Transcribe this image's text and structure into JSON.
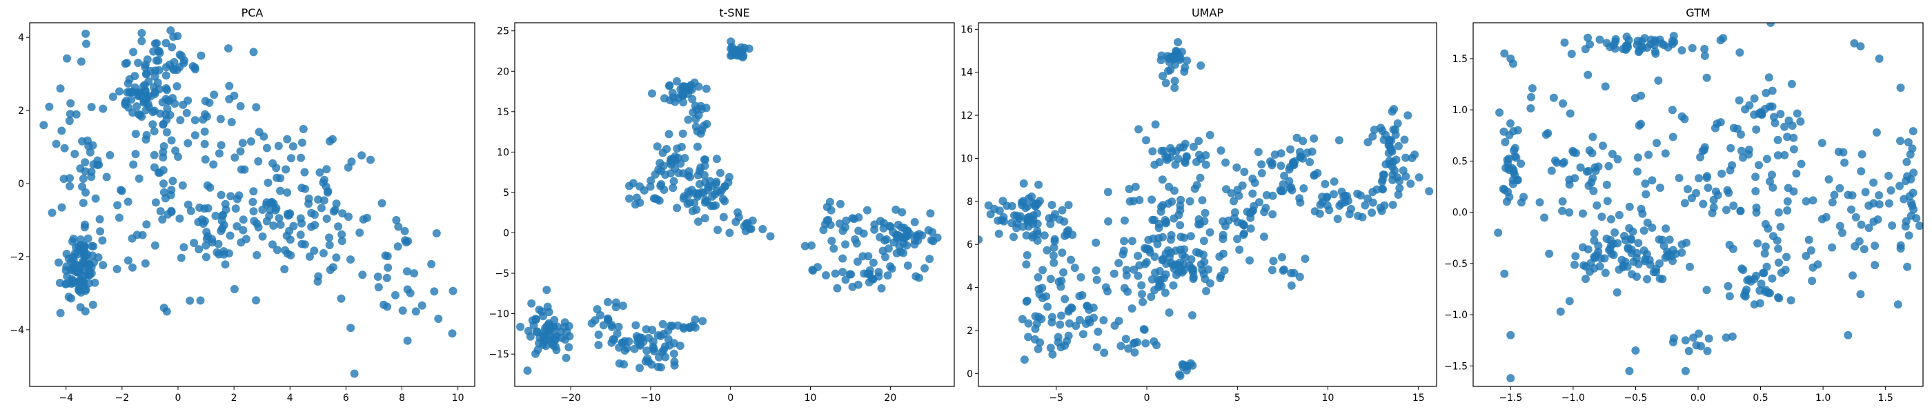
{
  "figure": {
    "background": "#ffffff",
    "point_color": "#1f77b4",
    "point_alpha": 0.8
  },
  "chart_data": [
    {
      "type": "scatter",
      "title": "PCA",
      "xlabel": "",
      "ylabel": "",
      "xlim": [
        -5.3,
        10.6
      ],
      "ylim": [
        -5.55,
        4.4
      ],
      "xticks": [
        -4,
        -2,
        0,
        2,
        4,
        6,
        8,
        10
      ],
      "yticks": [
        -4,
        -2,
        0,
        2,
        4
      ],
      "grid": false,
      "clusters": [
        {
          "cx": -3.5,
          "cy": -2.3,
          "sx": 0.35,
          "sy": 0.45,
          "n": 90
        },
        {
          "cx": -1.0,
          "cy": 2.2,
          "sx": 0.55,
          "sy": 0.7,
          "n": 90
        },
        {
          "cx": -0.5,
          "cy": 3.3,
          "sx": 0.6,
          "sy": 0.35,
          "n": 30
        },
        {
          "cx": -3.5,
          "cy": 0.5,
          "sx": 0.6,
          "sy": 1.3,
          "n": 40
        },
        {
          "cx": 1.2,
          "cy": 1.0,
          "sx": 1.0,
          "sy": 1.0,
          "n": 45
        },
        {
          "cx": 1.5,
          "cy": -1.2,
          "sx": 0.9,
          "sy": 0.5,
          "n": 35
        },
        {
          "cx": 3.5,
          "cy": -0.6,
          "sx": 0.8,
          "sy": 1.0,
          "n": 70
        },
        {
          "cx": 5.5,
          "cy": -0.8,
          "sx": 0.7,
          "sy": 0.9,
          "n": 45
        },
        {
          "cx": 7.8,
          "cy": -2.5,
          "sx": 1.0,
          "sy": 0.9,
          "n": 25
        },
        {
          "cx": -1.2,
          "cy": -1.0,
          "sx": 1.0,
          "sy": 1.0,
          "n": 35
        }
      ],
      "points": [
        {
          "x": -4.8,
          "y": 1.6
        },
        {
          "x": -4.6,
          "y": 2.1
        },
        {
          "x": -4.2,
          "y": 2.6
        },
        {
          "x": -4.5,
          "y": -0.8
        },
        {
          "x": -3.3,
          "y": 4.1
        },
        {
          "x": 2.7,
          "y": 3.6
        },
        {
          "x": 1.8,
          "y": 3.7
        },
        {
          "x": 7.8,
          "y": -1.0
        },
        {
          "x": 8.1,
          "y": -1.3
        },
        {
          "x": 7.5,
          "y": -2.3
        },
        {
          "x": 8.3,
          "y": -3.0
        },
        {
          "x": 8.5,
          "y": -3.5
        },
        {
          "x": 8.2,
          "y": -4.3
        },
        {
          "x": 9.3,
          "y": -3.7
        },
        {
          "x": 9.8,
          "y": -4.1
        },
        {
          "x": 6.3,
          "y": -5.2
        },
        {
          "x": 0.8,
          "y": -3.2
        },
        {
          "x": -0.4,
          "y": -3.5
        },
        {
          "x": -0.5,
          "y": -3.4
        },
        {
          "x": 6.2,
          "y": 0.6
        },
        {
          "x": -1.3,
          "y": 3.9
        },
        {
          "x": -1.6,
          "y": 3.6
        }
      ]
    },
    {
      "type": "scatter",
      "title": "t-SNE",
      "xlabel": "",
      "ylabel": "",
      "xlim": [
        -27,
        28
      ],
      "ylim": [
        -19,
        26
      ],
      "xticks": [
        -20,
        -10,
        0,
        10,
        20
      ],
      "yticks": [
        -15,
        -10,
        -5,
        0,
        5,
        10,
        15,
        20,
        25
      ],
      "grid": false,
      "clusters": [
        {
          "cx": 1.0,
          "cy": 22.5,
          "sx": 0.8,
          "sy": 0.6,
          "n": 20
        },
        {
          "cx": -6.0,
          "cy": 17.5,
          "sx": 1.6,
          "sy": 1.0,
          "n": 30
        },
        {
          "cx": -4.0,
          "cy": 14.0,
          "sx": 0.6,
          "sy": 1.2,
          "n": 15
        },
        {
          "cx": -7.0,
          "cy": 8.0,
          "sx": 1.6,
          "sy": 1.6,
          "n": 35
        },
        {
          "cx": -3.0,
          "cy": 5.0,
          "sx": 1.5,
          "sy": 2.0,
          "n": 55
        },
        {
          "cx": -10.0,
          "cy": 5.0,
          "sx": 1.5,
          "sy": 0.9,
          "n": 15
        },
        {
          "cx": 3.0,
          "cy": 1.0,
          "sx": 2.0,
          "sy": 0.9,
          "n": 15
        },
        {
          "cx": 15.0,
          "cy": 0.5,
          "sx": 2.5,
          "sy": 1.8,
          "n": 35
        },
        {
          "cx": 22.0,
          "cy": -0.3,
          "sx": 1.8,
          "sy": 1.4,
          "n": 45
        },
        {
          "cx": 17.0,
          "cy": -5.0,
          "sx": 3.0,
          "sy": 1.0,
          "n": 35
        },
        {
          "cx": -23.0,
          "cy": -12.5,
          "sx": 1.5,
          "sy": 1.7,
          "n": 60
        },
        {
          "cx": -10.0,
          "cy": -14.5,
          "sx": 2.0,
          "sy": 1.5,
          "n": 50
        },
        {
          "cx": -15.0,
          "cy": -11.5,
          "sx": 1.6,
          "sy": 1.6,
          "n": 25
        },
        {
          "cx": -5.0,
          "cy": -11.5,
          "sx": 1.0,
          "sy": 0.5,
          "n": 10
        }
      ],
      "points": []
    },
    {
      "type": "scatter",
      "title": "UMAP",
      "xlabel": "",
      "ylabel": "",
      "xlim": [
        -9.3,
        16.0
      ],
      "ylim": [
        -0.6,
        16.3
      ],
      "xticks": [
        -5,
        0,
        5,
        10,
        15
      ],
      "yticks": [
        0,
        2,
        4,
        6,
        8,
        10,
        12,
        14,
        16
      ],
      "grid": false,
      "clusters": [
        {
          "cx": -7.0,
          "cy": 7.2,
          "sx": 0.9,
          "sy": 0.6,
          "n": 60
        },
        {
          "cx": -5.0,
          "cy": 6.0,
          "sx": 0.9,
          "sy": 0.9,
          "n": 25
        },
        {
          "cx": -5.0,
          "cy": 2.5,
          "sx": 1.0,
          "sy": 1.1,
          "n": 55
        },
        {
          "cx": -2.5,
          "cy": 2.5,
          "sx": 1.0,
          "sy": 0.5,
          "n": 10
        },
        {
          "cx": -0.5,
          "cy": 1.3,
          "sx": 0.5,
          "sy": 0.4,
          "n": 12
        },
        {
          "cx": 2.0,
          "cy": 0.3,
          "sx": 0.3,
          "sy": 0.3,
          "n": 10
        },
        {
          "cx": 1.5,
          "cy": 14.5,
          "sx": 0.5,
          "sy": 0.6,
          "n": 30
        },
        {
          "cx": 0.0,
          "cy": 5.0,
          "sx": 1.2,
          "sy": 1.0,
          "n": 55
        },
        {
          "cx": 2.5,
          "cy": 5.0,
          "sx": 1.0,
          "sy": 1.0,
          "n": 50
        },
        {
          "cx": 1.0,
          "cy": 7.5,
          "sx": 1.5,
          "sy": 0.8,
          "n": 35
        },
        {
          "cx": 1.5,
          "cy": 10.3,
          "sx": 1.2,
          "sy": 0.8,
          "n": 35
        },
        {
          "cx": 5.5,
          "cy": 6.8,
          "sx": 0.8,
          "sy": 0.7,
          "n": 25
        },
        {
          "cx": 6.0,
          "cy": 8.8,
          "sx": 1.2,
          "sy": 0.6,
          "n": 25
        },
        {
          "cx": 8.0,
          "cy": 9.8,
          "sx": 1.0,
          "sy": 0.7,
          "n": 35
        },
        {
          "cx": 7.5,
          "cy": 5.0,
          "sx": 0.6,
          "sy": 0.5,
          "n": 10
        },
        {
          "cx": 10.5,
          "cy": 8.2,
          "sx": 1.0,
          "sy": 0.5,
          "n": 25
        },
        {
          "cx": 13.5,
          "cy": 11.0,
          "sx": 0.6,
          "sy": 0.6,
          "n": 25
        },
        {
          "cx": 14.0,
          "cy": 9.5,
          "sx": 0.8,
          "sy": 0.5,
          "n": 20
        },
        {
          "cx": 12.5,
          "cy": 8.5,
          "sx": 1.0,
          "sy": 0.5,
          "n": 20
        }
      ],
      "points": []
    },
    {
      "type": "scatter",
      "title": "GTM",
      "xlabel": "",
      "ylabel": "",
      "xlim": [
        -1.8,
        1.8
      ],
      "ylim": [
        -1.7,
        1.85
      ],
      "xticks": [
        -1.5,
        -1.0,
        -0.5,
        0.0,
        0.5,
        1.0,
        1.5
      ],
      "yticks": [
        -1.5,
        -1.0,
        -0.5,
        0.0,
        0.5,
        1.0,
        1.5
      ],
      "grid": false,
      "clusters": [
        {
          "cx": -0.5,
          "cy": 1.63,
          "sx": 0.25,
          "sy": 0.04,
          "n": 45
        },
        {
          "cx": -1.5,
          "cy": 0.4,
          "sx": 0.04,
          "sy": 0.25,
          "n": 25
        },
        {
          "cx": 1.7,
          "cy": 0.1,
          "sx": 0.04,
          "sy": 0.45,
          "n": 25
        },
        {
          "cx": -0.7,
          "cy": -0.4,
          "sx": 0.18,
          "sy": 0.15,
          "n": 55
        },
        {
          "cx": -0.3,
          "cy": -0.4,
          "sx": 0.15,
          "sy": 0.15,
          "n": 30
        },
        {
          "cx": 0.5,
          "cy": -0.7,
          "sx": 0.1,
          "sy": 0.15,
          "n": 30
        },
        {
          "cx": 0.5,
          "cy": 0.1,
          "sx": 0.35,
          "sy": 0.3,
          "n": 60
        },
        {
          "cx": 1.2,
          "cy": 0.0,
          "sx": 0.25,
          "sy": 0.3,
          "n": 40
        },
        {
          "cx": -1.0,
          "cy": 0.5,
          "sx": 0.3,
          "sy": 0.4,
          "n": 50
        },
        {
          "cx": 0.2,
          "cy": 0.9,
          "sx": 0.5,
          "sy": 0.4,
          "n": 40
        },
        {
          "cx": 0.0,
          "cy": -1.3,
          "sx": 0.12,
          "sy": 0.1,
          "n": 12
        },
        {
          "cx": -0.5,
          "cy": 0.2,
          "sx": 0.3,
          "sy": 0.3,
          "n": 25
        },
        {
          "cx": 0.5,
          "cy": 0.9,
          "sx": 0.2,
          "sy": 0.2,
          "n": 25
        }
      ],
      "points": [
        {
          "x": -1.55,
          "y": 1.55
        },
        {
          "x": -1.5,
          "y": 1.5
        },
        {
          "x": -1.48,
          "y": 1.45
        },
        {
          "x": -1.55,
          "y": -0.6
        },
        {
          "x": -1.6,
          "y": -0.2
        },
        {
          "x": -1.5,
          "y": -1.2
        },
        {
          "x": -1.5,
          "y": -1.62
        },
        {
          "x": 1.25,
          "y": 1.65
        },
        {
          "x": 1.3,
          "y": 1.62
        },
        {
          "x": 1.45,
          "y": 1.5
        },
        {
          "x": 0.2,
          "y": 1.7
        },
        {
          "x": 0.18,
          "y": 1.68
        },
        {
          "x": -1.1,
          "y": -0.97
        },
        {
          "x": -0.9,
          "y": -0.65
        },
        {
          "x": -0.5,
          "y": -1.35
        },
        {
          "x": -0.55,
          "y": -1.55
        },
        {
          "x": -0.1,
          "y": -1.55
        },
        {
          "x": 1.2,
          "y": -1.2
        },
        {
          "x": 1.3,
          "y": -0.8
        },
        {
          "x": 1.6,
          "y": -0.9
        }
      ]
    }
  ]
}
